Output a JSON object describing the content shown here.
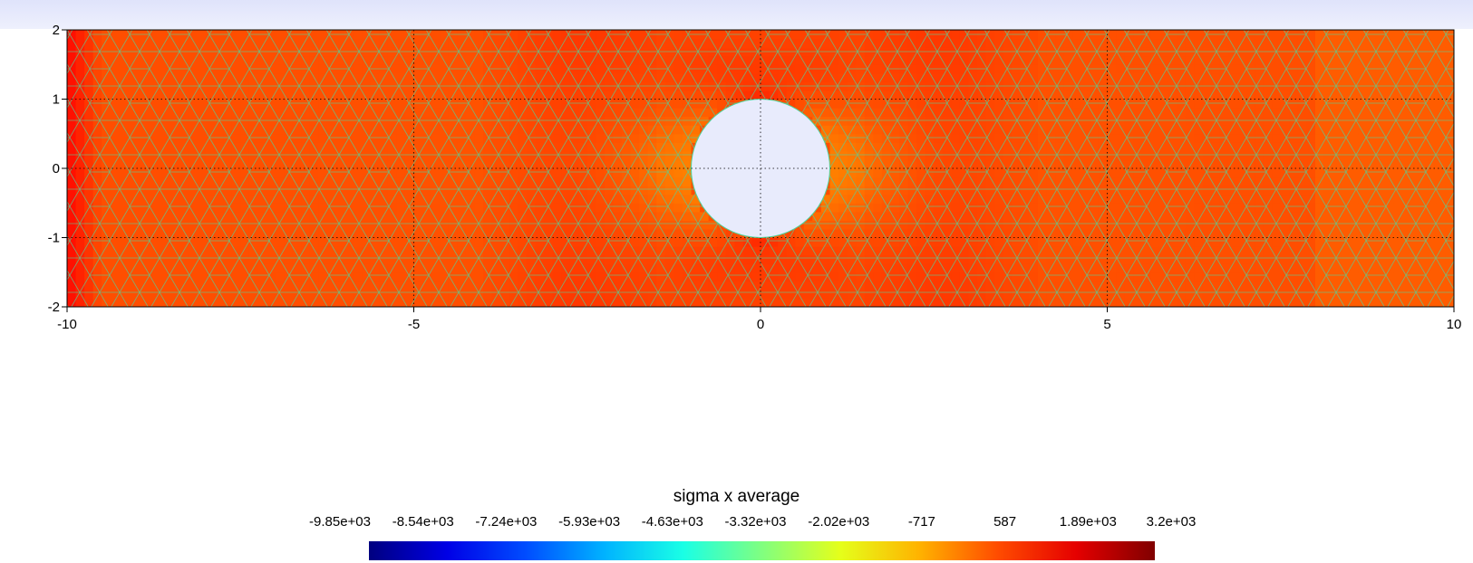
{
  "chart_data": {
    "type": "heatmap",
    "title": "sigma x average",
    "xlabel": "",
    "ylabel": "",
    "xlim": [
      -10,
      10
    ],
    "ylim": [
      -2,
      2
    ],
    "x_ticks": [
      "-10",
      "-5",
      "0",
      "5",
      "10"
    ],
    "y_ticks": [
      "2",
      "1",
      "0",
      "-1",
      "-2"
    ],
    "grid": true,
    "domain": {
      "x": [
        -10,
        10
      ],
      "y": [
        -2,
        2
      ],
      "hole_center": [
        0,
        0
      ],
      "hole_radius": 1
    },
    "colorbar": {
      "min": -9850,
      "max": 3200,
      "labels": [
        "-9.85e+03",
        "-8.54e+03",
        "-7.24e+03",
        "-5.93e+03",
        "-4.63e+03",
        "-3.32e+03",
        "-2.02e+03",
        "-717",
        "587",
        "1.89e+03",
        "3.2e+03"
      ],
      "colormap": "jet",
      "placement": "bottom"
    },
    "colors": {
      "background_band": "#dfe3fb",
      "mesh_edges": "#4fd39a",
      "hole_fill": "#e8ebfc"
    }
  }
}
